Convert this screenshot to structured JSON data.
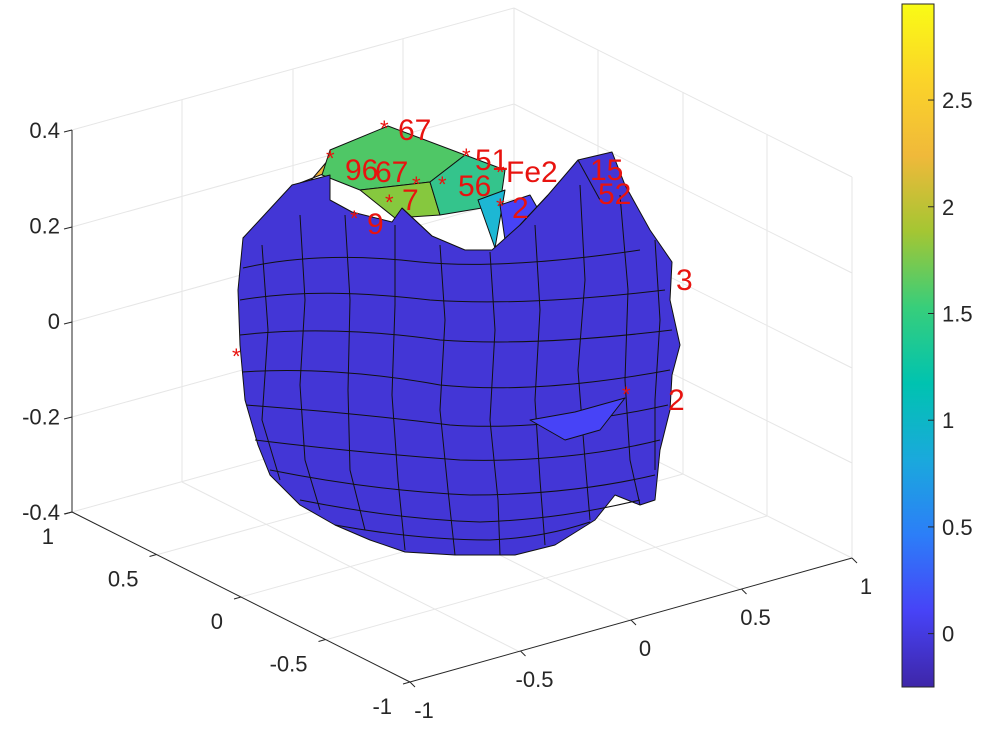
{
  "chart_data": {
    "type": "surface3d",
    "title": "",
    "xlabel": "",
    "ylabel": "",
    "zlabel": "",
    "x_ticks": [
      "-1",
      "-0.5",
      "0",
      "0.5",
      "1"
    ],
    "y_ticks": [
      "-1",
      "-0.5",
      "0",
      "0.5",
      "1"
    ],
    "z_ticks": [
      "-0.4",
      "-0.2",
      "0",
      "0.2",
      "0.4"
    ],
    "xlim": [
      -1,
      1
    ],
    "ylim": [
      -1,
      1
    ],
    "zlim": [
      -0.4,
      0.4
    ],
    "grid": true,
    "colorbar": {
      "ticks": [
        "0",
        "0.5",
        "1",
        "1.5",
        "2",
        "2.5"
      ],
      "range": [
        -0.25,
        2.95
      ],
      "colormap": [
        "#3e26a8",
        "#4743f7",
        "#2c7ef8",
        "#1aa9dc",
        "#00c3b0",
        "#37ce7b",
        "#a4c633",
        "#f0b93a",
        "#fbd429",
        "#f9fb15"
      ]
    },
    "surface": {
      "base_value": 0.0,
      "base_color": "#4336d6",
      "top_patches": [
        {
          "value": 2.0,
          "color": "#4fc766"
        },
        {
          "value": 1.8,
          "color": "#86c83e"
        },
        {
          "value": 1.5,
          "color": "#34c48c"
        },
        {
          "value": 1.0,
          "color": "#1db7d4"
        },
        {
          "value": 2.6,
          "color": "#f2b33a"
        }
      ]
    },
    "annotations": [
      {
        "text": "67"
      },
      {
        "text": "96"
      },
      {
        "text": "67"
      },
      {
        "text": "51"
      },
      {
        "text": "56"
      },
      {
        "text": "9"
      },
      {
        "text": "7"
      },
      {
        "text": "Fe2"
      },
      {
        "text": "15"
      },
      {
        "text": "52"
      },
      {
        "text": "2"
      },
      {
        "text": "3"
      },
      {
        "text": "2"
      }
    ]
  }
}
